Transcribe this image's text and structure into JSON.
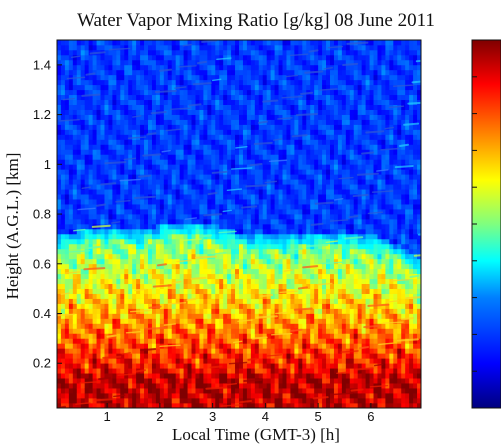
{
  "chart_data": {
    "type": "heatmap",
    "title": "Water Vapor Mixing Ratio [g/kg] 08 June 2011",
    "xlabel": "Local Time (GMT-3) [h]",
    "ylabel": "Height (A.G.L.) [km]",
    "xlim": [
      0.05,
      6.95
    ],
    "ylim": [
      0.02,
      1.5
    ],
    "x_ticks": [
      1,
      2,
      3,
      4,
      5,
      6
    ],
    "y_ticks": [
      0.2,
      0.4,
      0.6,
      0.8,
      1,
      1.2,
      1.4
    ],
    "x_tick_labels": [
      "1",
      "2",
      "3",
      "4",
      "5",
      "6"
    ],
    "y_tick_labels": [
      "0.2",
      "0.4",
      "0.6",
      "0.8",
      "1",
      "1.2",
      "1.4"
    ],
    "colormap": "jet",
    "colorbar_visible": true,
    "colorbar_position": "right",
    "colorbar_ticks_labeled": false,
    "mixed_layer_top": {
      "x": [
        0.1,
        0.6,
        1.1,
        1.6,
        2.1,
        2.6,
        3.1,
        3.6,
        4.1,
        4.6,
        5.1,
        5.6,
        6.1,
        6.6,
        6.9
      ],
      "y": [
        0.66,
        0.69,
        0.7,
        0.68,
        0.71,
        0.72,
        0.7,
        0.67,
        0.66,
        0.67,
        0.68,
        0.67,
        0.66,
        0.62,
        0.57
      ]
    },
    "surface_maximum_height": 0.15,
    "grid": false
  }
}
